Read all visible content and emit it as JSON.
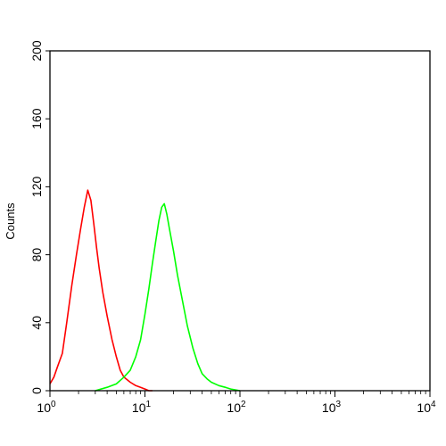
{
  "chart_data": {
    "type": "line",
    "title": "",
    "xlabel": "",
    "ylabel": "Counts",
    "x_scale": "log",
    "xlim": [
      1,
      10000
    ],
    "ylim": [
      0,
      200
    ],
    "x_ticks": [
      {
        "base": "10",
        "exp": "0"
      },
      {
        "base": "10",
        "exp": "1"
      },
      {
        "base": "10",
        "exp": "2"
      },
      {
        "base": "10",
        "exp": "3"
      },
      {
        "base": "10",
        "exp": "4"
      }
    ],
    "y_ticks": [
      "0",
      "40",
      "80",
      "120",
      "160",
      "200"
    ],
    "grid": false,
    "legend": "none",
    "series": [
      {
        "color": "#ff0000",
        "x": [
          1.0,
          1.1,
          1.2,
          1.35,
          1.5,
          1.7,
          1.9,
          2.1,
          2.3,
          2.5,
          2.7,
          2.9,
          3.1,
          3.3,
          3.6,
          4.0,
          4.5,
          5.0,
          5.5,
          6.0,
          7.0,
          8.0,
          9.0,
          10.0,
          11.0,
          12.0
        ],
        "y": [
          4,
          8,
          14,
          22,
          40,
          62,
          80,
          95,
          108,
          118,
          112,
          98,
          84,
          72,
          58,
          44,
          30,
          20,
          12,
          8,
          5,
          3,
          2,
          1,
          0,
          0
        ]
      },
      {
        "color": "#00ff00",
        "x": [
          3.0,
          4.0,
          5.0,
          6.0,
          7.0,
          8.0,
          9.0,
          10.0,
          11.0,
          12.0,
          13.0,
          14.0,
          15.0,
          16.0,
          17.0,
          18.0,
          20.0,
          22.0,
          25.0,
          28.0,
          32.0,
          36.0,
          40.0,
          45.0,
          50.0,
          60.0,
          70.0,
          80.0,
          100.0
        ],
        "y": [
          0,
          2,
          4,
          8,
          12,
          20,
          30,
          45,
          60,
          75,
          88,
          100,
          108,
          110,
          104,
          96,
          82,
          68,
          52,
          38,
          25,
          16,
          10,
          7,
          5,
          3,
          2,
          1,
          0
        ]
      }
    ]
  }
}
